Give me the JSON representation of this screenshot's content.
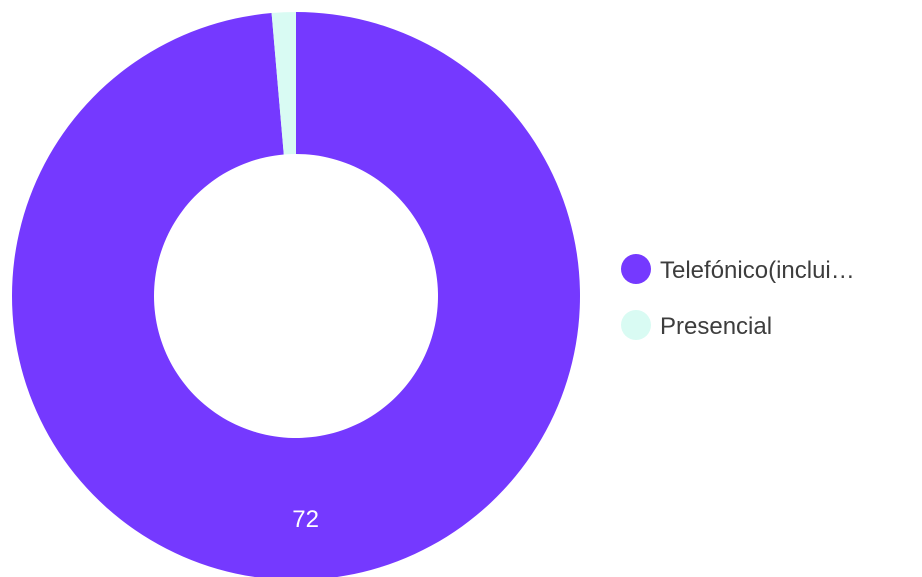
{
  "chart_data": {
    "type": "pie",
    "donut": true,
    "title": "",
    "slices": [
      {
        "label": "Telefónico(inclui…",
        "value": 72,
        "color": "#7539ff",
        "show_value_label": true
      },
      {
        "label": "Presencial",
        "value": 1,
        "color": "#d9fbf3",
        "show_value_label": false
      }
    ],
    "value_labels": [
      "72"
    ],
    "legend_position": "right"
  }
}
